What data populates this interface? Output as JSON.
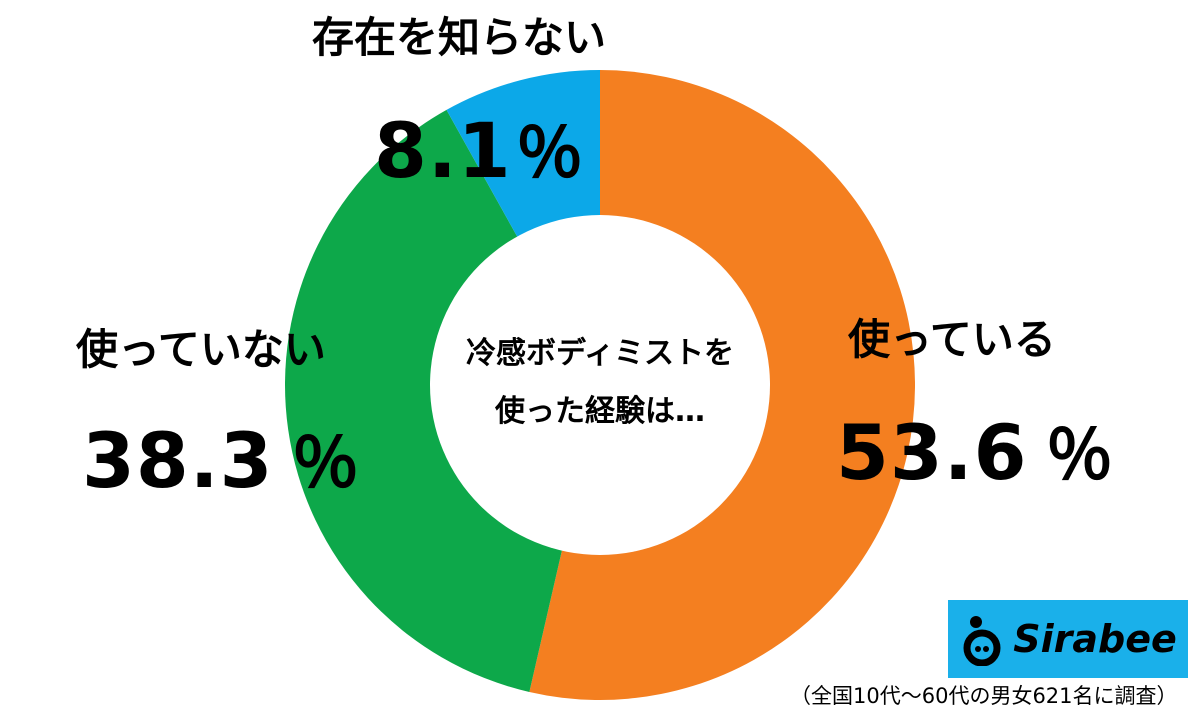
{
  "chart_data": {
    "type": "pie",
    "donut": true,
    "center_label": [
      "冷感ボディミストを",
      "使った経験は…"
    ],
    "slices": [
      {
        "label": "使っている",
        "value": 53.6,
        "display": "53.6",
        "color": "#F47F20"
      },
      {
        "label": "使っていない",
        "value": 38.3,
        "display": "38.3",
        "color": "#0DA84A"
      },
      {
        "label": "存在を知らない",
        "value": 8.1,
        "display": "8.1",
        "color": "#0CA8E8"
      }
    ],
    "percent_sign": "％",
    "start_angle": "top",
    "direction": "clockwise"
  },
  "logo": {
    "text": "Sirabee",
    "background": "#1AB0EA"
  },
  "footnote": "（全国10代〜60代の男女621名に調査）"
}
